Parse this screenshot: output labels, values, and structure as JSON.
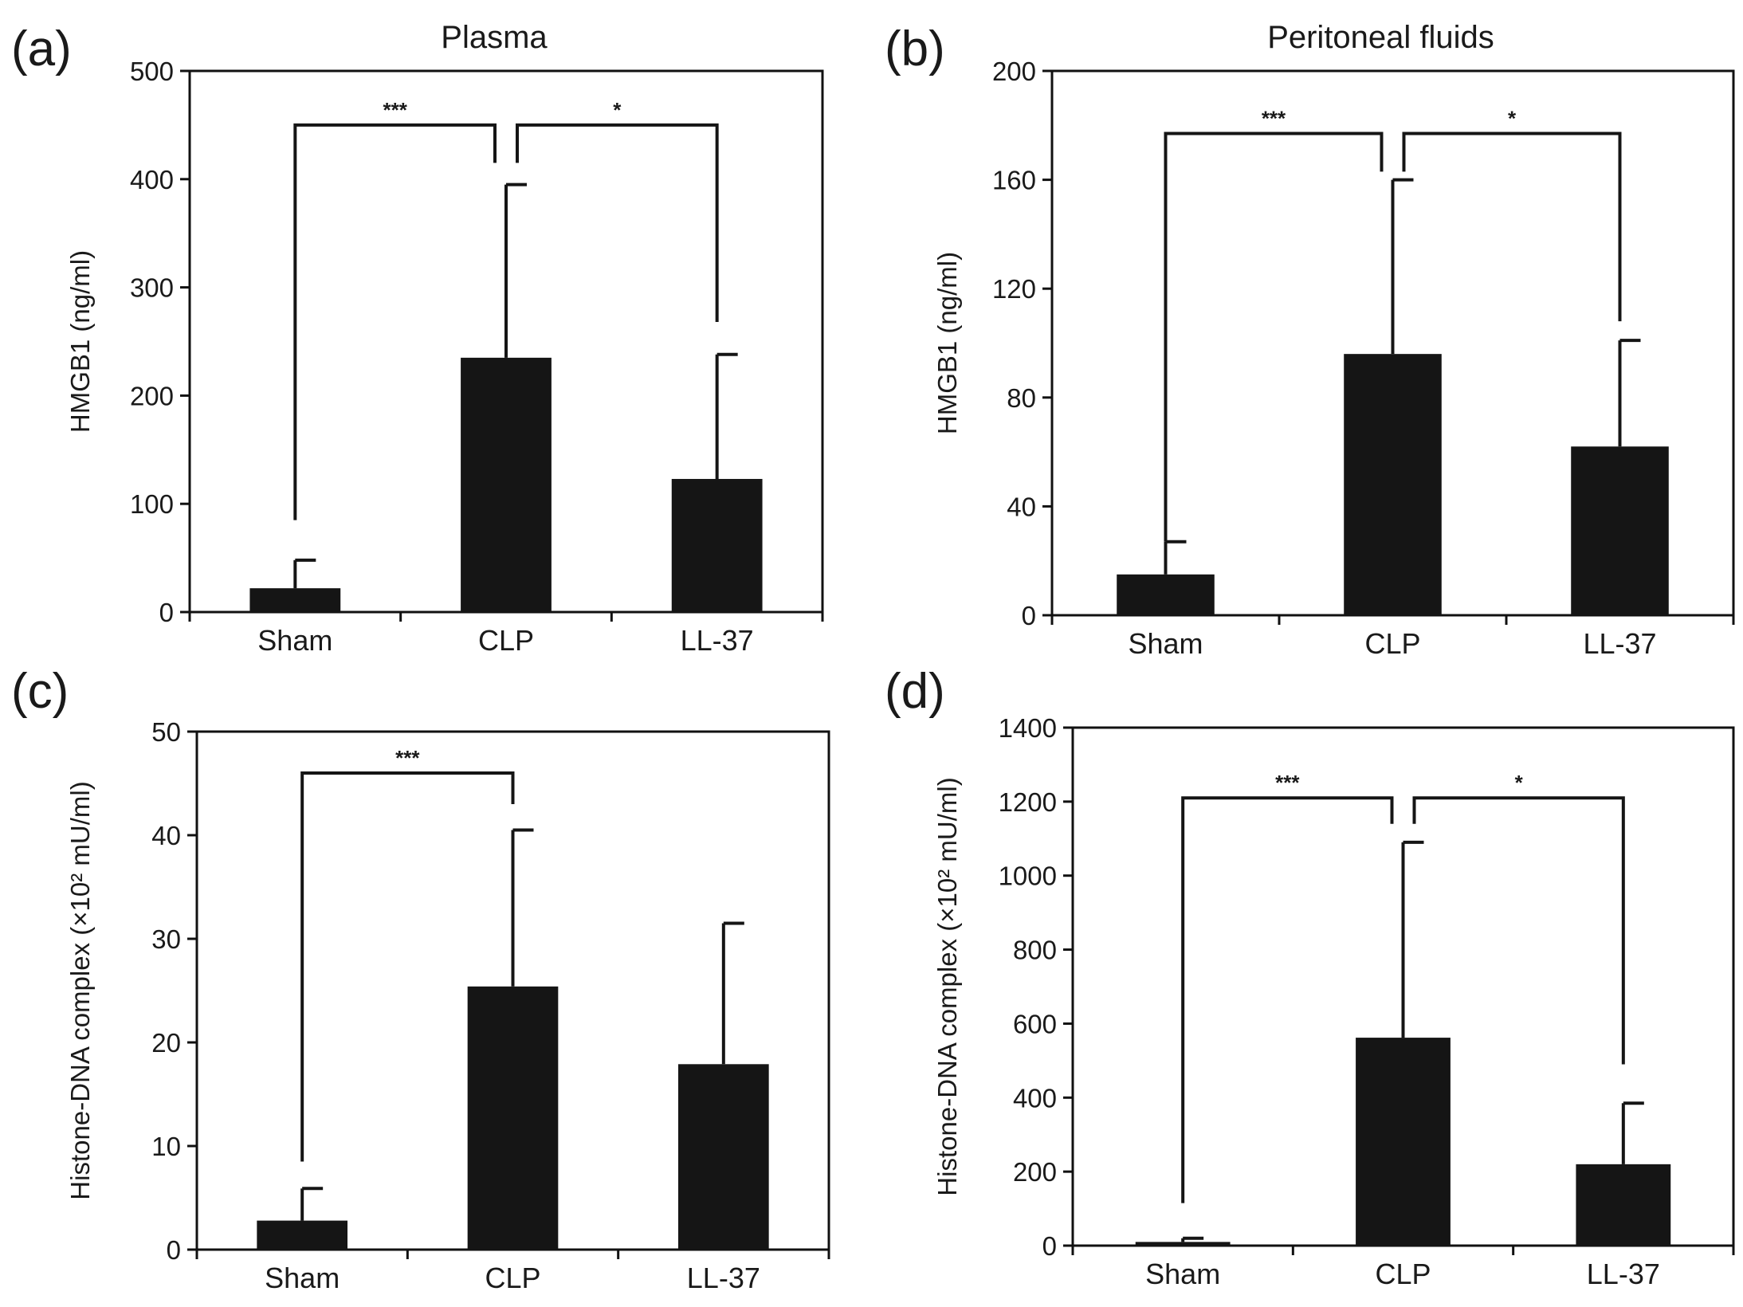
{
  "chart_data": [
    {
      "type": "bar",
      "panel_label": "(a)",
      "title": "Plasma",
      "ylabel": "HMGB1 (ng/ml)",
      "categories": [
        "Sham",
        "CLP",
        "LL-37"
      ],
      "values": [
        22,
        235,
        123
      ],
      "error_upper": [
        48,
        395,
        238
      ],
      "ylim": [
        0,
        500
      ],
      "yticks": [
        0,
        100,
        200,
        300,
        400,
        500
      ],
      "grid": false,
      "significance": [
        {
          "from": 0,
          "to": 1,
          "label": "***",
          "bracket_y": 450,
          "left_drop_to": 85,
          "right_drop_to": 415
        },
        {
          "from": 1,
          "to": 2,
          "label": "*",
          "bracket_y": 450,
          "left_drop_to": 415,
          "right_drop_to": 268
        }
      ]
    },
    {
      "type": "bar",
      "panel_label": "(b)",
      "title": "Peritoneal fluids",
      "ylabel": "HMGB1 (ng/ml)",
      "categories": [
        "Sham",
        "CLP",
        "LL-37"
      ],
      "values": [
        15,
        96,
        62
      ],
      "error_upper": [
        27,
        160,
        101
      ],
      "ylim": [
        0,
        200
      ],
      "yticks": [
        0,
        40,
        80,
        120,
        160,
        200
      ],
      "grid": false,
      "significance": [
        {
          "from": 0,
          "to": 1,
          "label": "***",
          "bracket_y": 177,
          "left_drop_to": 27,
          "right_drop_to": 163
        },
        {
          "from": 1,
          "to": 2,
          "label": "*",
          "bracket_y": 177,
          "left_drop_to": 163,
          "right_drop_to": 108
        }
      ]
    },
    {
      "type": "bar",
      "panel_label": "(c)",
      "title": "",
      "ylabel": "Histone-DNA complex (×10² mU/ml)",
      "categories": [
        "Sham",
        "CLP",
        "LL-37"
      ],
      "values": [
        2.8,
        25.4,
        17.9
      ],
      "error_upper": [
        5.9,
        40.5,
        31.5
      ],
      "ylim": [
        0,
        50
      ],
      "yticks": [
        0,
        10,
        20,
        30,
        40,
        50
      ],
      "grid": false,
      "significance": [
        {
          "from": 0,
          "to": 1,
          "label": "***",
          "bracket_y": 46,
          "left_drop_to": 8.5,
          "right_drop_to": 43
        }
      ]
    },
    {
      "type": "bar",
      "panel_label": "(d)",
      "title": "",
      "ylabel": "Histone-DNA complex (×10² mU/ml)",
      "categories": [
        "Sham",
        "CLP",
        "LL-37"
      ],
      "values": [
        10,
        562,
        220
      ],
      "error_upper": [
        20,
        1090,
        385
      ],
      "ylim": [
        0,
        1400
      ],
      "yticks": [
        0,
        200,
        400,
        600,
        800,
        1000,
        1200,
        1400
      ],
      "grid": false,
      "significance": [
        {
          "from": 0,
          "to": 1,
          "label": "***",
          "bracket_y": 1210,
          "left_drop_to": 115,
          "right_drop_to": 1140
        },
        {
          "from": 1,
          "to": 2,
          "label": "*",
          "bracket_y": 1210,
          "left_drop_to": 1140,
          "right_drop_to": 490
        }
      ]
    }
  ]
}
